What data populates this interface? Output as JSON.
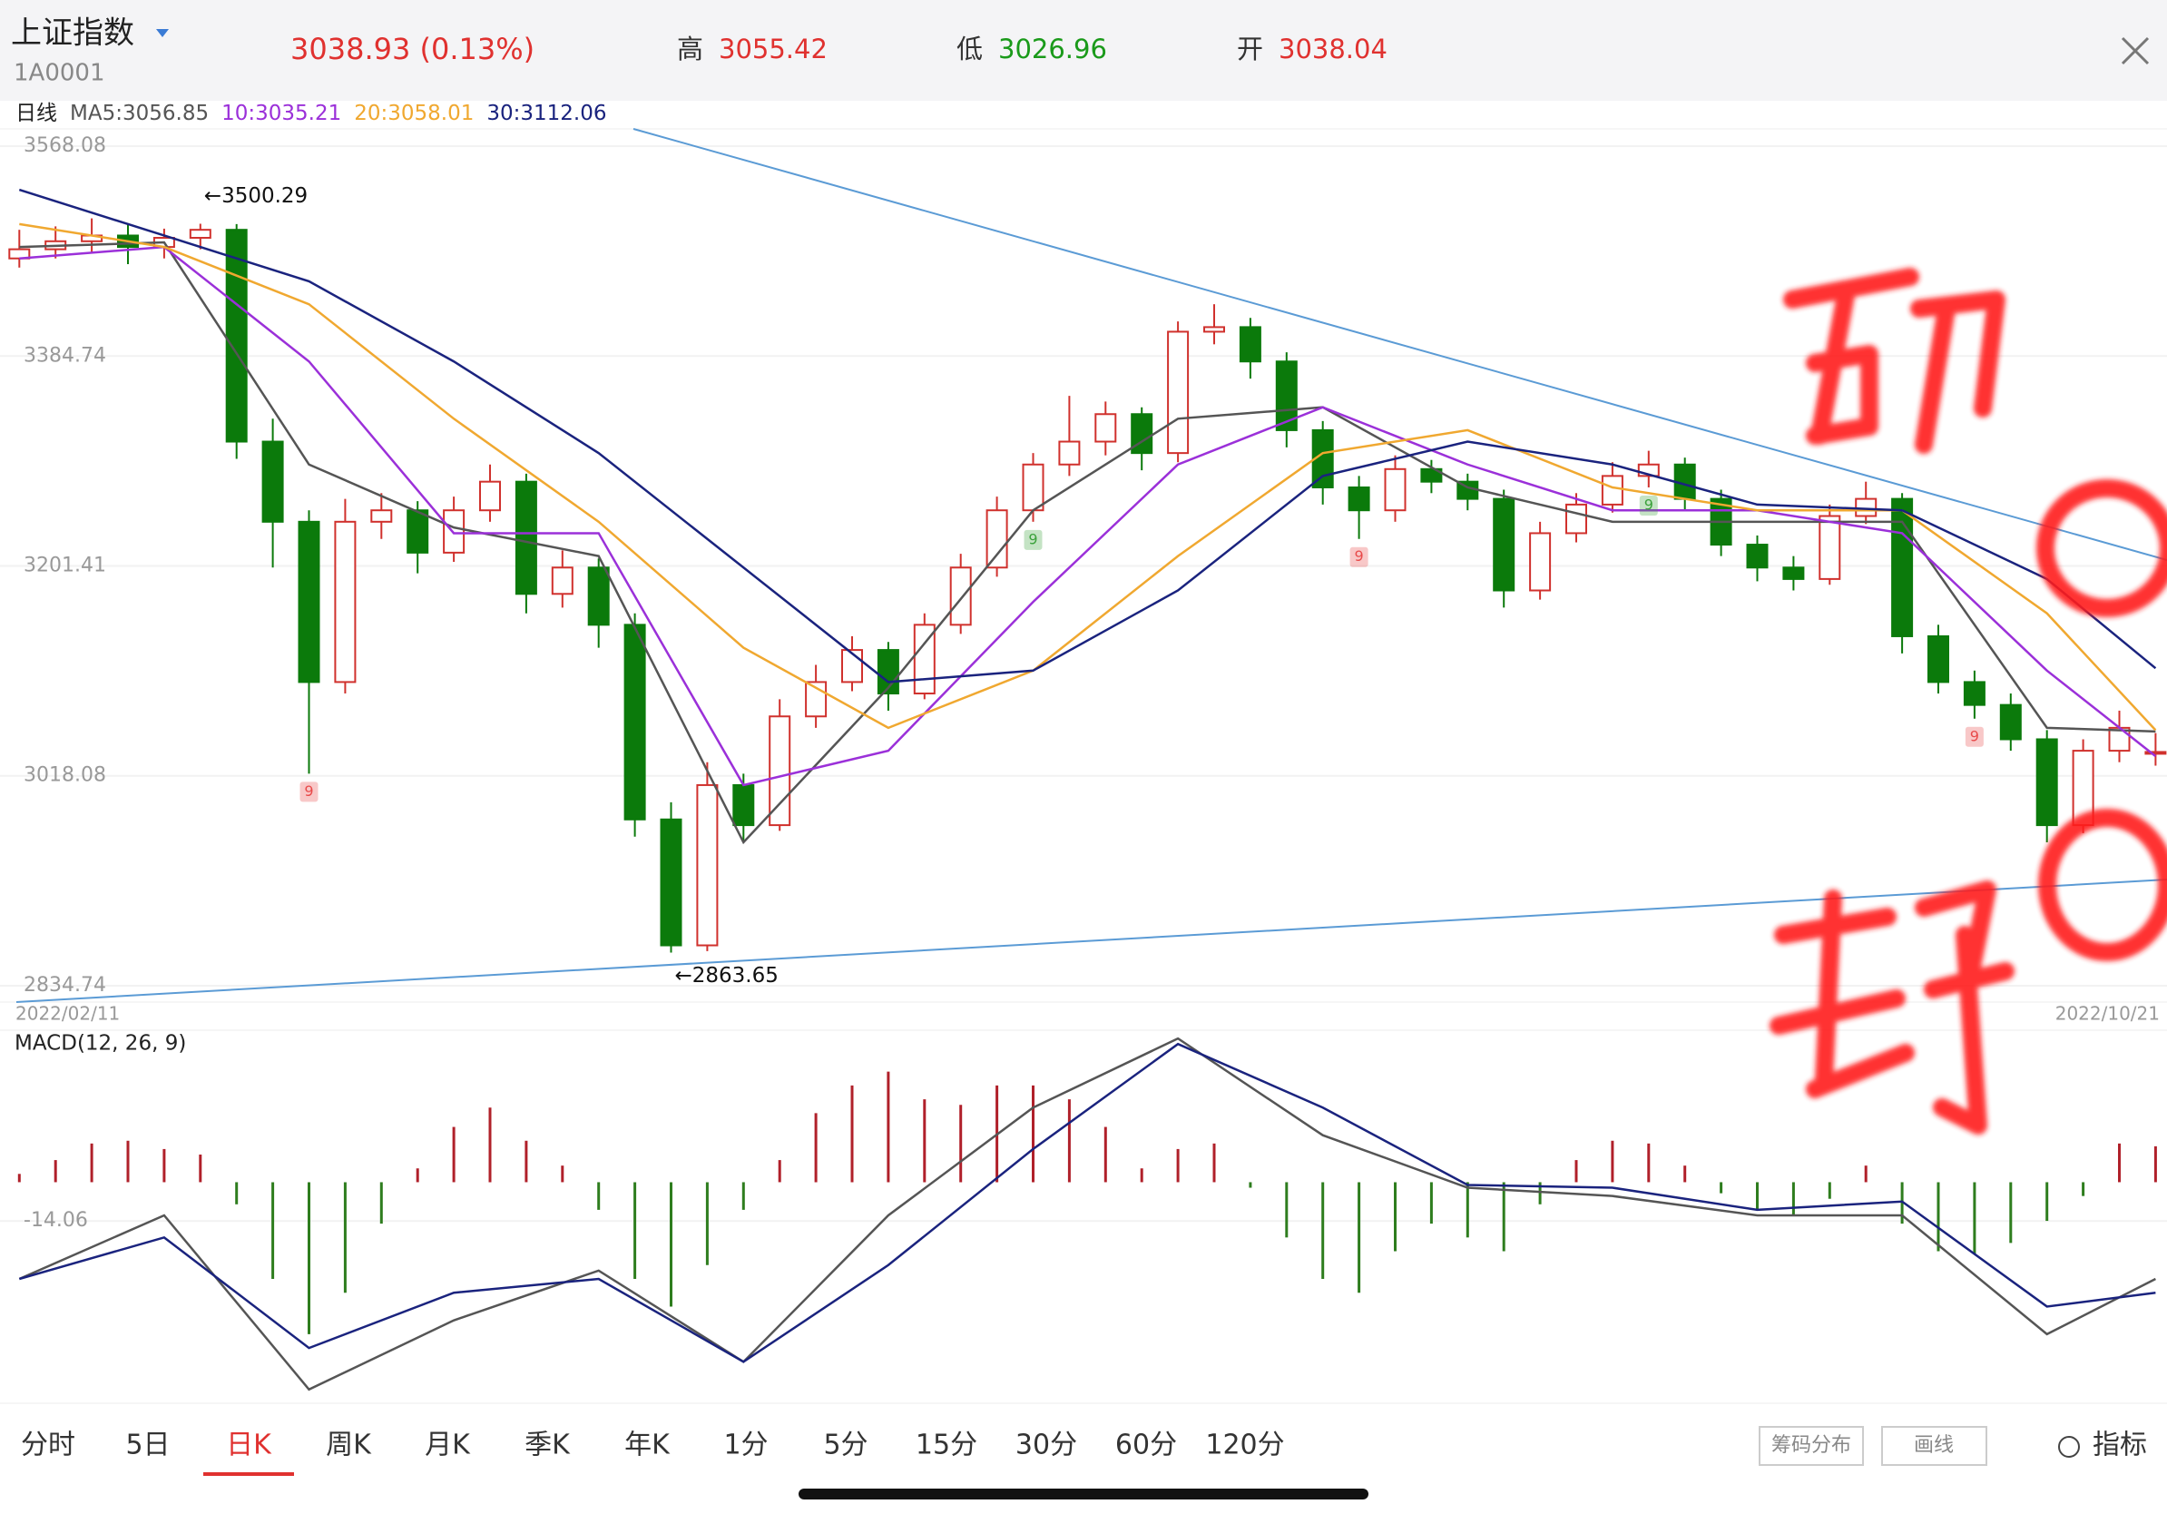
{
  "header": {
    "name": "上证指数",
    "code": "1A0001",
    "price": "3038.93 (0.13%)",
    "high_label": "高",
    "high": "3055.42",
    "low_label": "低",
    "low": "3026.96",
    "open_label": "开",
    "open": "3038.04"
  },
  "chart_data": {
    "type": "candlestick",
    "period_label": "日线",
    "x_start_label": "2022/02/11",
    "x_end_label": "2022/10/21",
    "ylim": [
      2834.74,
      3568.08
    ],
    "yticks": [
      3568.08,
      3384.74,
      3201.41,
      3018.08,
      2834.74
    ],
    "grid": true,
    "up_color": "#d0312d",
    "down_color": "#0b7a0b",
    "candles": [
      [
        3470,
        3495,
        3462,
        3478
      ],
      [
        3478,
        3498,
        3470,
        3485
      ],
      [
        3485,
        3505,
        3475,
        3490
      ],
      [
        3490,
        3500,
        3465,
        3480
      ],
      [
        3480,
        3496,
        3470,
        3488
      ],
      [
        3488,
        3500.29,
        3478,
        3495
      ],
      [
        3495,
        3500,
        3295,
        3310
      ],
      [
        3310,
        3330,
        3200,
        3240
      ],
      [
        3240,
        3250,
        3020,
        3100
      ],
      [
        3100,
        3260,
        3090,
        3240
      ],
      [
        3240,
        3265,
        3225,
        3250
      ],
      [
        3250,
        3258,
        3195,
        3213
      ],
      [
        3213,
        3262,
        3205,
        3250
      ],
      [
        3250,
        3290,
        3240,
        3275
      ],
      [
        3275,
        3282,
        3160,
        3177
      ],
      [
        3177,
        3215,
        3165,
        3200
      ],
      [
        3200,
        3208,
        3130,
        3150
      ],
      [
        3150,
        3160,
        2965,
        2980
      ],
      [
        2980,
        2995,
        2863.65,
        2870
      ],
      [
        2870,
        3030,
        2865,
        3010
      ],
      [
        3010,
        3020,
        2960,
        2975
      ],
      [
        2975,
        3085,
        2970,
        3070
      ],
      [
        3070,
        3115,
        3060,
        3100
      ],
      [
        3100,
        3140,
        3092,
        3128
      ],
      [
        3128,
        3135,
        3075,
        3090
      ],
      [
        3090,
        3160,
        3085,
        3150
      ],
      [
        3150,
        3212,
        3142,
        3200
      ],
      [
        3200,
        3262,
        3192,
        3250
      ],
      [
        3250,
        3300,
        3240,
        3290
      ],
      [
        3290,
        3350,
        3280,
        3310
      ],
      [
        3310,
        3345,
        3298,
        3334
      ],
      [
        3334,
        3340,
        3285,
        3300
      ],
      [
        3300,
        3415,
        3292,
        3406
      ],
      [
        3406,
        3430,
        3395,
        3410
      ],
      [
        3410,
        3418,
        3365,
        3380
      ],
      [
        3380,
        3388,
        3305,
        3320
      ],
      [
        3320,
        3328,
        3255,
        3270
      ],
      [
        3270,
        3280,
        3225,
        3250
      ],
      [
        3250,
        3298,
        3240,
        3286
      ],
      [
        3286,
        3294,
        3265,
        3275
      ],
      [
        3275,
        3282,
        3250,
        3260
      ],
      [
        3260,
        3268,
        3165,
        3180
      ],
      [
        3180,
        3240,
        3172,
        3230
      ],
      [
        3230,
        3265,
        3222,
        3255
      ],
      [
        3255,
        3292,
        3248,
        3280
      ],
      [
        3280,
        3302,
        3270,
        3290
      ],
      [
        3290,
        3296,
        3250,
        3260
      ],
      [
        3260,
        3268,
        3210,
        3220
      ],
      [
        3220,
        3228,
        3188,
        3200
      ],
      [
        3200,
        3210,
        3180,
        3190
      ],
      [
        3190,
        3255,
        3185,
        3245
      ],
      [
        3245,
        3275,
        3238,
        3260
      ],
      [
        3260,
        3265,
        3125,
        3140
      ],
      [
        3140,
        3150,
        3090,
        3100
      ],
      [
        3100,
        3110,
        3068,
        3080
      ],
      [
        3080,
        3090,
        3040,
        3050
      ],
      [
        3050,
        3058,
        2960,
        2975
      ],
      [
        2975,
        3050,
        2968,
        3040
      ],
      [
        3040,
        3075,
        3030,
        3060
      ],
      [
        3038.04,
        3055.42,
        3026.96,
        3038.93
      ]
    ],
    "ma_x": [
      0,
      4,
      8,
      12,
      16,
      20,
      24,
      28,
      32,
      36,
      40,
      44,
      48,
      52,
      56,
      59
    ],
    "series": [
      {
        "name": "MA5:",
        "color": "#555555",
        "values": [
          3480,
          3484,
          3290,
          3235,
          3210,
          2960,
          3095,
          3250,
          3330,
          3340,
          3270,
          3240,
          3240,
          3240,
          3060,
          3056.85
        ]
      },
      {
        "name": "10:",
        "color": "#9b30d9",
        "values": [
          3470,
          3480,
          3380,
          3230,
          3230,
          3010,
          3040,
          3170,
          3290,
          3340,
          3290,
          3250,
          3250,
          3230,
          3110,
          3035.21
        ]
      },
      {
        "name": "20:",
        "color": "#f0a830",
        "values": [
          3500,
          3480,
          3430,
          3330,
          3240,
          3130,
          3060,
          3110,
          3210,
          3300,
          3320,
          3270,
          3250,
          3250,
          3160,
          3058.01
        ]
      },
      {
        "name": "30:",
        "color": "#1a237e",
        "values": [
          3530,
          3490,
          3450,
          3380,
          3300,
          3200,
          3100,
          3110,
          3180,
          3280,
          3310,
          3290,
          3255,
          3250,
          3190,
          3112.06
        ]
      }
    ],
    "annotations": [
      {
        "index": 5,
        "text": "←3500.29"
      },
      {
        "index": 18,
        "text": "←2863.65"
      }
    ],
    "td_marks": [
      {
        "index": 8,
        "label": "9",
        "color": "#e84a4a"
      },
      {
        "index": 28,
        "label": "9",
        "color": "#3aa13a"
      },
      {
        "index": 37,
        "label": "9",
        "color": "#e84a4a"
      },
      {
        "index": 45,
        "label": "9",
        "color": "#3aa13a"
      },
      {
        "index": 54,
        "label": "9",
        "color": "#e84a4a"
      }
    ],
    "macd": {
      "title": "MACD(12, 26, 9)",
      "ylim": [
        -80,
        55
      ],
      "yticks": [
        {
          "value": -14.06,
          "label": "-14.06"
        }
      ],
      "up_color": "#b0202a",
      "down_color": "#2e7d1e",
      "histogram": [
        3,
        8,
        14,
        15,
        12,
        10,
        -8,
        -35,
        -55,
        -40,
        -15,
        5,
        20,
        27,
        15,
        6,
        -10,
        -35,
        -45,
        -30,
        -10,
        8,
        25,
        35,
        40,
        30,
        28,
        35,
        35,
        30,
        20,
        5,
        12,
        14,
        -2,
        -20,
        -35,
        -40,
        -25,
        -15,
        -20,
        -25,
        -8,
        8,
        15,
        14,
        6,
        -4,
        -10,
        -12,
        -6,
        6,
        -15,
        -25,
        -26,
        -22,
        -14,
        -5,
        14,
        13
      ],
      "lines": [
        {
          "color": "#555555",
          "values": [
            -35,
            -12,
            -75,
            -50,
            -32,
            -65,
            -12,
            27,
            52,
            17,
            -2,
            -5,
            -12,
            -12,
            -55,
            -35
          ]
        },
        {
          "color": "#1a237e",
          "values": [
            -35,
            -20,
            -60,
            -40,
            -35,
            -65,
            -30,
            12,
            50,
            27,
            -1,
            -2,
            -10,
            -7,
            -45,
            -40
          ]
        }
      ]
    }
  },
  "tabs": {
    "items": [
      "分时",
      "5日",
      "日K",
      "周K",
      "月K",
      "季K",
      "年K",
      "1分",
      "5分",
      "15分",
      "30分",
      "60分",
      "120分"
    ],
    "selected": 2
  },
  "buttons": [
    "筹码分布",
    "画线"
  ],
  "indicator": "指标"
}
